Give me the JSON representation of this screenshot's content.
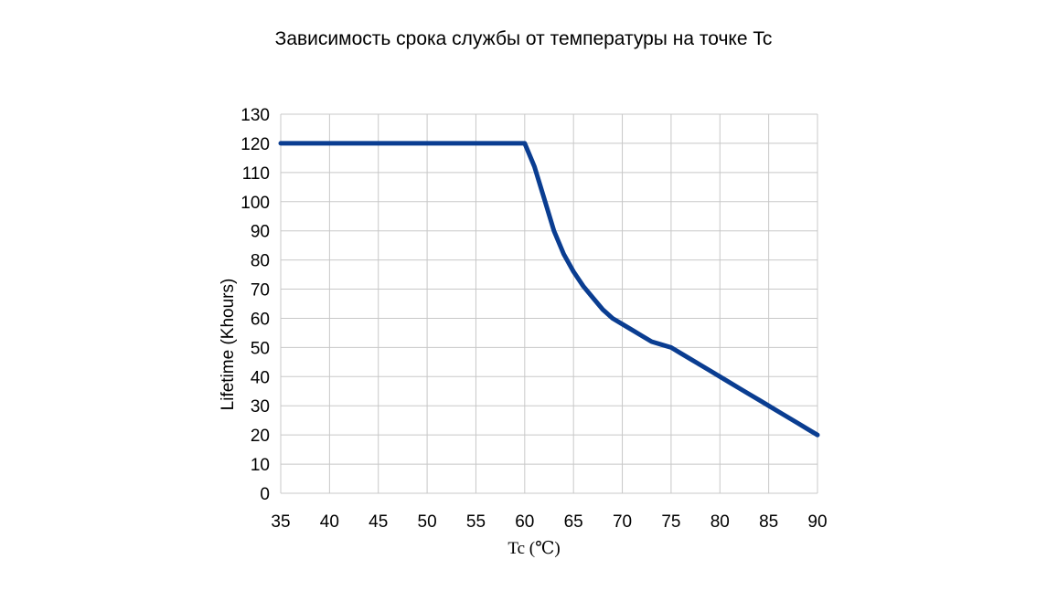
{
  "chart_data": {
    "type": "line",
    "title": "Зависимость срока службы от температуры на точке Tc",
    "xlabel": "Tc (℃)",
    "ylabel": "Lifetime (Khours)",
    "xlim": [
      35,
      90
    ],
    "ylim": [
      0,
      130
    ],
    "x_ticks": [
      35,
      40,
      45,
      50,
      55,
      60,
      65,
      70,
      75,
      80,
      85,
      90
    ],
    "y_ticks": [
      0,
      10,
      20,
      30,
      40,
      50,
      60,
      70,
      80,
      90,
      100,
      110,
      120,
      130
    ],
    "grid": true,
    "series": [
      {
        "x": [
          35,
          40,
          45,
          50,
          55,
          60,
          61,
          62,
          63,
          64,
          65,
          66,
          67,
          68,
          69,
          70,
          71,
          72,
          73,
          74,
          75,
          76,
          77,
          78,
          79,
          80,
          81,
          82,
          83,
          84,
          85,
          86,
          87,
          88,
          89,
          90
        ],
        "y": [
          120,
          120,
          120,
          120,
          120,
          120,
          112,
          101,
          90,
          82,
          76,
          71,
          67,
          63,
          60,
          58,
          56,
          54,
          52,
          51,
          50,
          48,
          46,
          44,
          42,
          40,
          38,
          36,
          34,
          32,
          30,
          28,
          26,
          24,
          22,
          20
        ],
        "color": "#0a3d91"
      }
    ]
  }
}
